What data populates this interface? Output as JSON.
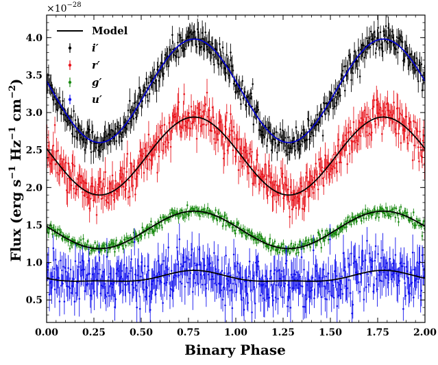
{
  "chart_data": {
    "type": "scatter",
    "xlabel": "Binary Phase",
    "ylabel_main": "Flux (erg s",
    "ylabel_sup1": "−1",
    "ylabel_mid": " Hz",
    "ylabel_sup2": "−1",
    "ylabel_cm": " cm",
    "ylabel_sup3": "−2",
    "ylabel_close": ")",
    "y_multiplier_base": "×10",
    "y_multiplier_exp": "−28",
    "xlim": [
      0.0,
      2.0
    ],
    "ylim": [
      0.2,
      4.3
    ],
    "xticks": [
      "0.00",
      "0.25",
      "0.50",
      "0.75",
      "1.00",
      "1.25",
      "1.50",
      "1.75",
      "2.00"
    ],
    "yticks": [
      "0.5",
      "1.0",
      "1.5",
      "2.0",
      "2.5",
      "3.0",
      "3.5",
      "4.0"
    ],
    "legend_position": "top-left",
    "model_label": "Model",
    "series": [
      {
        "name": "i′",
        "color": "#000000",
        "model_color": "#0000cc",
        "mean": 3.29,
        "amp": 0.69,
        "harm2": 0.0,
        "noise": 0.09,
        "err": 0.12
      },
      {
        "name": "r′",
        "color": "#e8141c",
        "model_color": "#000000",
        "mean": 2.42,
        "amp": 0.52,
        "harm2": 0.0,
        "noise": 0.14,
        "err": 0.15
      },
      {
        "name": "g′",
        "color": "#1a8a12",
        "model_color": "#000000",
        "mean": 1.435,
        "amp": 0.25,
        "harm2": 0.0,
        "noise": 0.04,
        "err": 0.05
      },
      {
        "name": "u′",
        "color": "#1010ee",
        "model_color": "#000000",
        "mean": 0.8,
        "amp": 0.07,
        "harm2": 0.025,
        "noise": 0.16,
        "err": 0.18
      }
    ],
    "model_peak_phase": 0.78,
    "points_per_series": 480
  }
}
